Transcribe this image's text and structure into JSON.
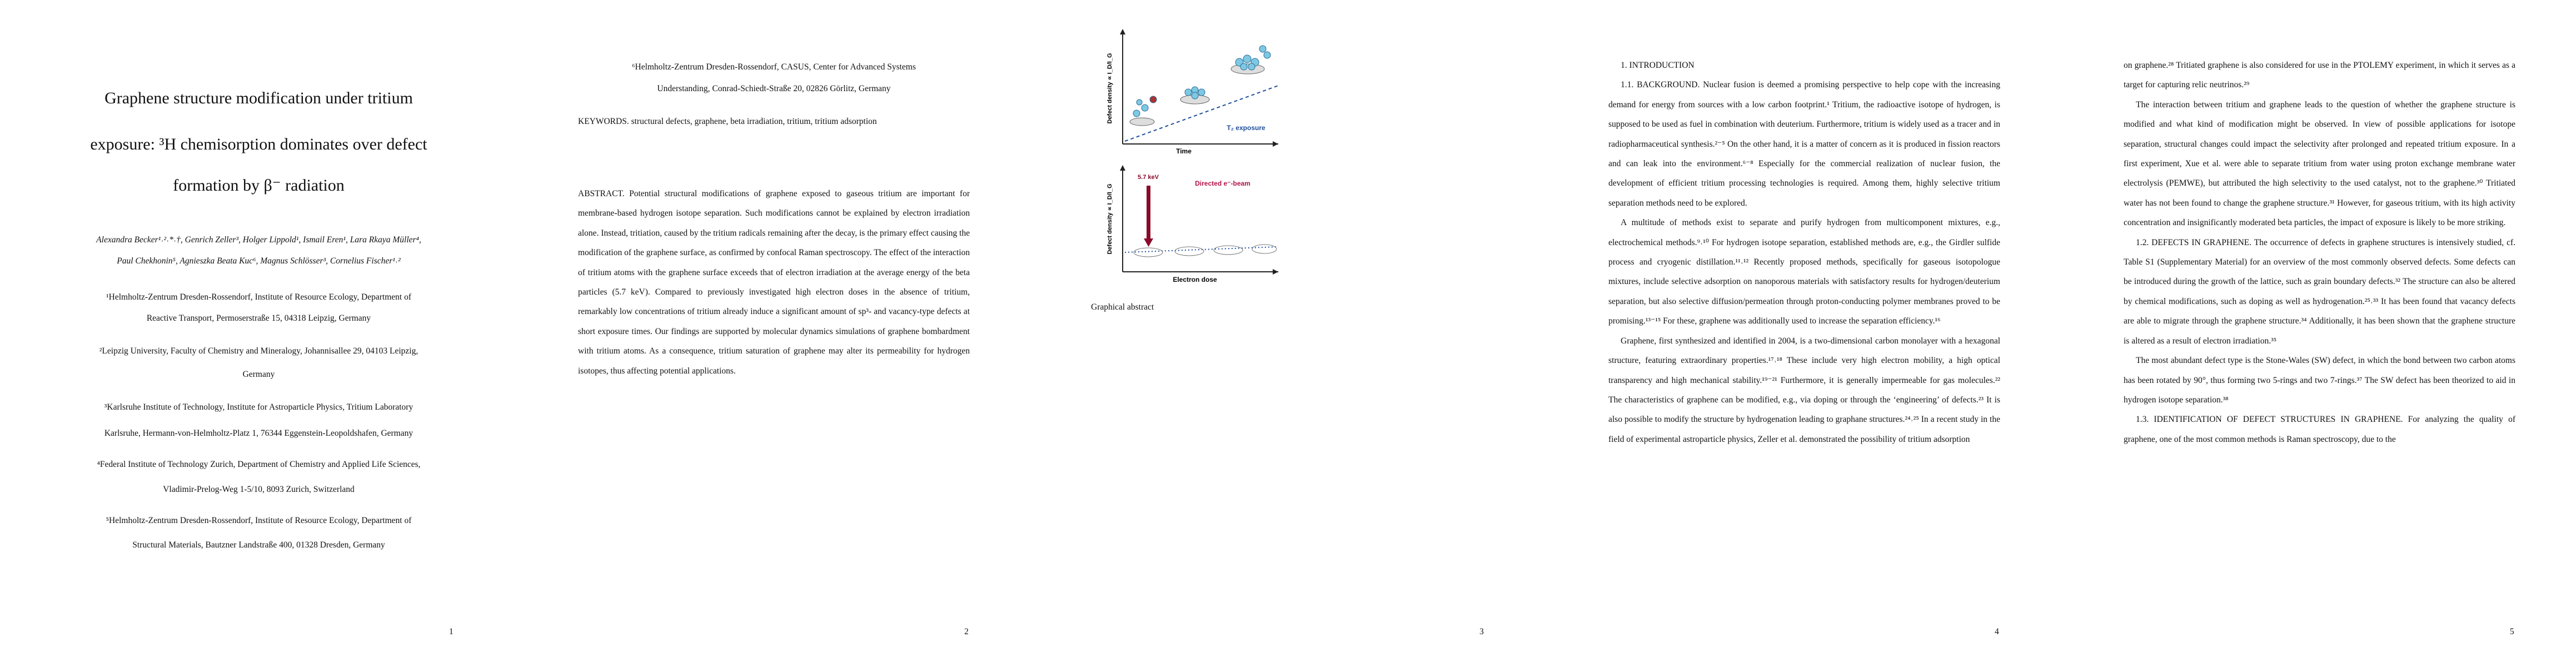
{
  "pages": [
    {
      "title": [
        "Graphene structure modification under tritium",
        "exposure: ³H chemisorption dominates over defect",
        "formation by β⁻ radiation"
      ],
      "authors": [
        "Alexandra Becker¹˒²˒*˒†, Genrich Zeller³, Holger Lippold¹, Ismail Eren¹, Lara Rkaya Müller⁴,",
        "Paul Chekhonin⁵, Agnieszka Beata Kuc⁶, Magnus Schlösser³, Cornelius Fischer¹˒²"
      ],
      "affiliations": [
        [
          "¹Helmholtz-Zentrum Dresden-Rossendorf, Institute of Resource Ecology, Department of",
          "Reactive Transport, Permoserstraße 15, 04318 Leipzig, Germany"
        ],
        [
          "²Leipzig University, Faculty of Chemistry and Mineralogy, Johannisallee 29, 04103 Leipzig,",
          "Germany"
        ],
        [
          "³Karlsruhe Institute of Technology, Institute for Astroparticle Physics, Tritium Laboratory",
          "Karlsruhe, Hermann-von-Helmholtz-Platz 1, 76344 Eggenstein-Leopoldshafen, Germany"
        ],
        [
          "⁴Federal Institute of Technology Zurich, Department of Chemistry and Applied Life Sciences,",
          "Vladimir-Prelog-Weg 1-5/10, 8093 Zurich, Switzerland"
        ],
        [
          "⁵Helmholtz-Zentrum Dresden-Rossendorf, Institute of Resource Ecology, Department of",
          "Structural Materials, Bautzner Landstraße 400, 01328 Dresden, Germany"
        ]
      ],
      "page_number": "1"
    },
    {
      "affiliation": [
        "⁶Helmholtz-Zentrum Dresden-Rossendorf, CASUS, Center for Advanced Systems",
        "Understanding, Conrad-Schiedt-Straße 20, 02826 Görlitz, Germany"
      ],
      "keywords": "KEYWORDS. structural defects, graphene, beta irradiation, tritium, tritium adsorption",
      "abstract": "ABSTRACT. Potential structural modifications of graphene exposed to gaseous tritium are important for membrane-based hydrogen isotope separation. Such modifications cannot be explained by electron irradiation alone. Instead, tritiation, caused by the tritium radicals remaining after the decay, is the primary effect causing the modification of the graphene surface, as confirmed by confocal Raman spectroscopy. The effect of the interaction of tritium atoms with the graphene surface exceeds that of electron irradiation at the average energy of the beta particles (5.7 keV). Compared to previously investigated high electron doses in the absence of tritium, remarkably low concentrations of tritium already induce a significant amount of sp³- and vacancy-type defects at short exposure times. Our findings are supported by molecular dynamics simulations of graphene bombardment with tritium atoms. As a consequence, tritium saturation of graphene may alter its permeability for hydrogen isotopes, thus affecting potential applications.",
      "page_number": "2"
    },
    {
      "figure": {
        "top_y_label": "Defect density ∝ I_D/I_G",
        "top_x_label": "Time",
        "top_legend": "T₂ exposure",
        "bottom_y_label": "Defect density ∝ I_D/I_G",
        "energy_label": "5.7 keV",
        "beam_label": "Directed e⁻-beam",
        "bottom_x_label": "Electron dose"
      },
      "caption": "Graphical abstract",
      "page_number": "3"
    },
    {
      "heading": "1. INTRODUCTION",
      "paragraphs": [
        "1.1. BACKGROUND. Nuclear fusion is deemed a promising perspective to help cope with the increasing demand for energy from sources with a low carbon footprint.¹ Tritium, the radioactive isotope of hydrogen, is supposed to be used as fuel in combination with deuterium. Furthermore, tritium is widely used as a tracer and in radiopharmaceutical synthesis.²⁻⁵ On the other hand, it is a matter of concern as it is produced in fission reactors and can leak into the environment.⁶⁻⁸ Especially for the commercial realization of nuclear fusion, the development of efficient tritium processing technologies is required. Among them, highly selective tritium separation methods need to be explored.",
        "A multitude of methods exist to separate and purify hydrogen from multicomponent mixtures, e.g., electrochemical methods.⁹˒¹⁰ For hydrogen isotope separation, established methods are, e.g., the Girdler sulfide process and cryogenic distillation.¹¹˒¹² Recently proposed methods, specifically for gaseous isotopologue mixtures, include selective adsorption on nanoporous materials with satisfactory results for hydrogen/deuterium separation, but also selective diffusion/permeation through proton-conducting polymer membranes proved to be promising.¹³⁻¹⁵ For these, graphene was additionally used to increase the separation efficiency.¹⁶",
        "Graphene, first synthesized and identified in 2004, is a two-dimensional carbon monolayer with a hexagonal structure, featuring extraordinary properties.¹⁷˒¹⁸ These include very high electron mobility, a high optical transparency and high mechanical stability.¹⁹⁻²¹ Furthermore, it is generally impermeable for gas molecules.²² The characteristics of graphene can be modified, e.g., via doping or through the ‘engineering’ of defects.²³ It is also possible to modify the structure by hydrogenation leading to graphane structures.²⁴˒²⁵ In a recent study in the field of experimental astroparticle physics, Zeller et al. demonstrated the possibility of tritium adsorption"
      ],
      "page_number": "4"
    },
    {
      "paragraphs": [
        "on graphene.²⁸ Tritiated graphene is also considered for use in the PTOLEMY experiment, in which it serves as a target for capturing relic neutrinos.²⁹",
        "The interaction between tritium and graphene leads to the question of whether the graphene structure is modified and what kind of modification might be observed. In view of possible applications for isotope separation, structural changes could impact the selectivity after prolonged and repeated tritium exposure. In a first experiment, Xue et al. were able to separate tritium from water using proton exchange membrane water electrolysis (PEMWE), but attributed the high selectivity to the used catalyst, not to the graphene.³⁰ Tritiated water has not been found to change the graphene structure.³¹ However, for gaseous tritium, with its high activity concentration and insignificantly moderated beta particles, the impact of exposure is likely to be more striking.",
        "1.2. DEFECTS IN GRAPHENE. The occurrence of defects in graphene structures is intensively studied, cf. Table S1 (Supplementary Material) for an overview of the most commonly observed defects. Some defects can be introduced during the growth of the lattice, such as grain boundary defects.³² The structure can also be altered by chemical modifications, such as doping as well as hydrogenation.²⁵˒³³ It has been found that vacancy defects are able to migrate through the graphene structure.³⁴ Additionally, it has been shown that the graphene structure is altered as a result of electron irradiation.³⁵",
        "The most abundant defect type is the Stone-Wales (SW) defect, in which the bond between two carbon atoms has been rotated by 90°, thus forming two 5-rings and two 7-rings.³⁷ The SW defect has been theorized to aid in hydrogen isotope separation.³⁸",
        "1.3. IDENTIFICATION OF DEFECT STRUCTURES IN GRAPHENE. For analyzing the quality of graphene, one of the most common methods is Raman spectroscopy, due to the"
      ],
      "page_number": "5"
    }
  ]
}
